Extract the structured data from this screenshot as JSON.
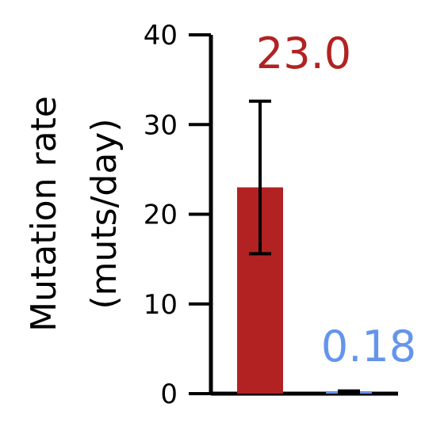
{
  "chart_data": {
    "type": "bar",
    "categories": [
      "",
      ""
    ],
    "values": [
      23.0,
      0.18
    ],
    "errors": [
      {
        "low": 15.6,
        "high": 32.6
      },
      {
        "low": 0.05,
        "high": 0.3
      }
    ],
    "data_labels": [
      "23.0",
      "0.18"
    ],
    "colors": [
      "#b22222",
      "#6495ed"
    ],
    "ylabel_lines": [
      "Mutation rate",
      "(muts/day)"
    ],
    "ylim": [
      0,
      40
    ],
    "yticks": [
      0,
      10,
      20,
      30,
      40
    ],
    "ytick_labels": [
      "0",
      "10",
      "20",
      "30",
      "40"
    ],
    "grid": false,
    "legend": "none"
  }
}
